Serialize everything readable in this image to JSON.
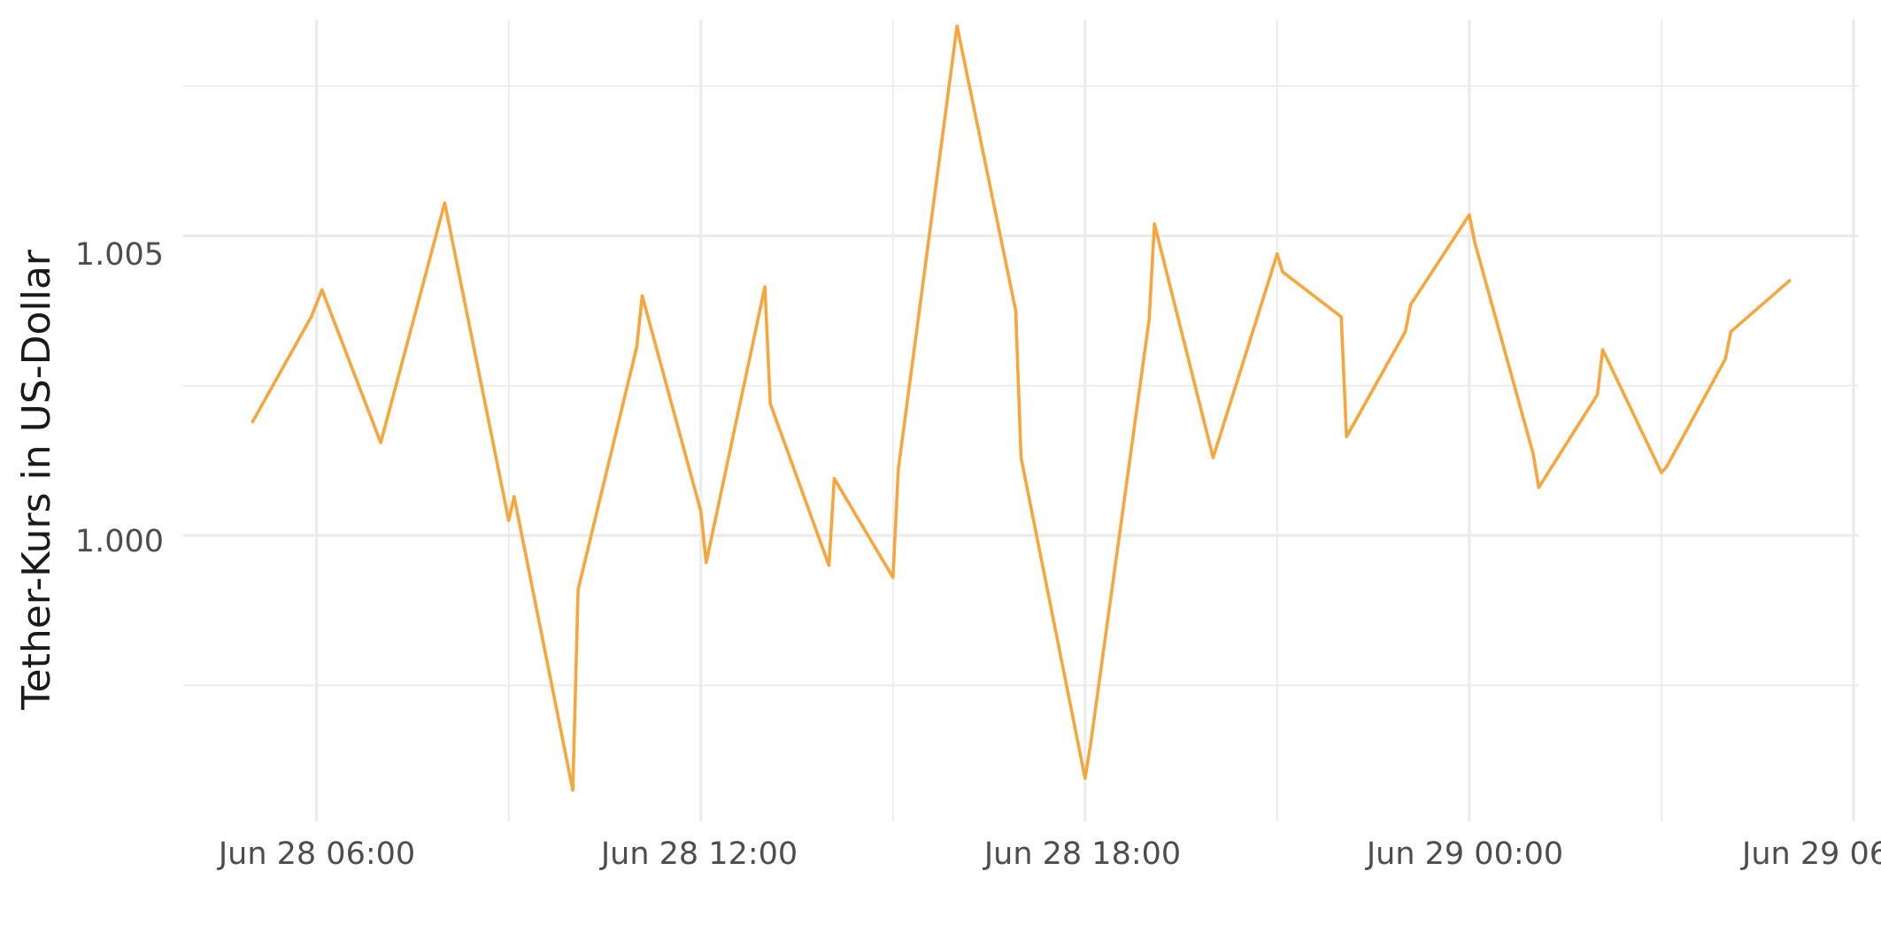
{
  "chart_data": {
    "type": "line",
    "title": "",
    "xlabel": "",
    "ylabel": "Tether-Kurs in US-Dollar",
    "x_ticks": [
      "Jun 28 06:00",
      "Jun 28 12:00",
      "Jun 28 18:00",
      "Jun 29 00:00",
      "Jun 29 06:00"
    ],
    "y_ticks": [
      "1.000",
      "1.005"
    ],
    "xlim": [
      "2024-06-28 03:55",
      "2024-06-29 06:05"
    ],
    "ylim": [
      0.99523,
      1.00861
    ],
    "grid": true,
    "series": [
      {
        "color": "#f7a63b",
        "x": [
          "2024-06-28 05:00",
          "2024-06-28 05:55",
          "2024-06-28 06:05",
          "2024-06-28 07:00",
          "2024-06-28 08:00",
          "2024-06-28 09:00",
          "2024-06-28 09:05",
          "2024-06-28 10:00",
          "2024-06-28 10:05",
          "2024-06-28 11:00",
          "2024-06-28 11:05",
          "2024-06-28 12:00",
          "2024-06-28 12:05",
          "2024-06-28 13:00",
          "2024-06-28 13:05",
          "2024-06-28 14:00",
          "2024-06-28 14:05",
          "2024-06-28 15:00",
          "2024-06-28 15:05",
          "2024-06-28 16:00",
          "2024-06-28 16:55",
          "2024-06-28 17:00",
          "2024-06-28 18:00",
          "2024-06-28 18:05",
          "2024-06-28 19:00",
          "2024-06-28 19:05",
          "2024-06-28 20:00",
          "2024-06-28 21:00",
          "2024-06-28 21:05",
          "2024-06-28 22:00",
          "2024-06-28 22:05",
          "2024-06-28 23:00",
          "2024-06-28 23:05",
          "2024-06-29 00:00",
          "2024-06-29 00:05",
          "2024-06-29 01:00",
          "2024-06-29 01:05",
          "2024-06-29 02:00",
          "2024-06-29 02:05",
          "2024-06-29 03:00",
          "2024-06-29 03:05",
          "2024-06-29 04:00",
          "2024-06-29 04:05",
          "2024-06-29 05:00"
        ],
        "y": [
          1.0019,
          1.00365,
          1.0041,
          1.00155,
          1.00555,
          1.00025,
          1.00065,
          0.99575,
          0.9991,
          1.00315,
          1.004,
          1.0004,
          0.99955,
          1.00415,
          1.0022,
          0.9995,
          1.00095,
          0.9993,
          1.0011,
          1.0085,
          1.00375,
          1.0013,
          0.99595,
          0.9965,
          1.0036,
          1.0052,
          1.0013,
          1.0047,
          1.0044,
          1.00365,
          1.00165,
          1.0034,
          1.00385,
          1.00535,
          1.0049,
          1.00135,
          1.0008,
          1.00235,
          1.0031,
          1.00105,
          1.00115,
          1.00295,
          1.0034,
          1.00425
        ]
      }
    ]
  }
}
